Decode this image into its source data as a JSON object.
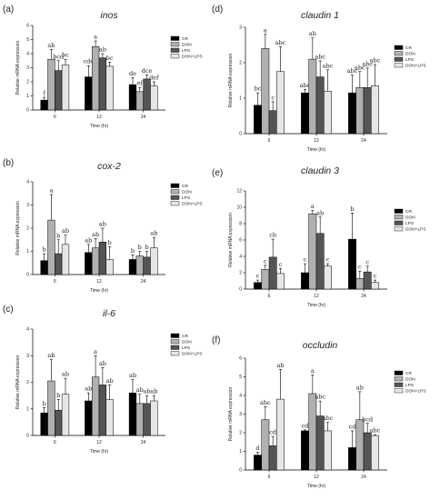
{
  "colors": {
    "CR": "#000000",
    "DON": "#b0b0b0",
    "LPS": "#555555",
    "DON+LPS": "#e6e6e6"
  },
  "chart_data": [
    {
      "type": "bar",
      "panel_label": "(a)",
      "title": "inos",
      "ylabel": "Relative mRNA expression",
      "xlabel": "Time (hr)",
      "categories": [
        "6",
        "12",
        "24"
      ],
      "ylim": [
        0,
        6
      ],
      "yticks": [
        0,
        1,
        2,
        3,
        4,
        5,
        6
      ],
      "legend": [
        "CR",
        "DON",
        "LPS",
        "DON+LPS"
      ],
      "series": [
        {
          "name": "CR",
          "values": [
            0.7,
            2.35,
            1.8
          ],
          "errors": [
            0.2,
            0.8,
            0.5
          ]
        },
        {
          "name": "DON",
          "values": [
            3.6,
            4.5,
            1.3
          ],
          "errors": [
            0.7,
            0.4,
            0.3
          ]
        },
        {
          "name": "LPS",
          "values": [
            2.8,
            3.7,
            2.2
          ],
          "errors": [
            0.7,
            0.3,
            0.3
          ]
        },
        {
          "name": "DON+LPS",
          "values": [
            3.2,
            3.1,
            1.7
          ],
          "errors": [
            0.4,
            0.3,
            0.3
          ]
        }
      ],
      "letters": [
        [
          "f",
          "ab",
          "bcd",
          "bc"
        ],
        [
          "cde",
          "a",
          "ab",
          "bc"
        ],
        [
          "de",
          "ef",
          "dce",
          "def"
        ]
      ]
    },
    {
      "type": "bar",
      "panel_label": "(b)",
      "title": "cox-2",
      "ylabel": "Relative mRNA expression",
      "xlabel": "Time (hr)",
      "categories": [
        "6",
        "12",
        "24"
      ],
      "ylim": [
        0,
        4
      ],
      "yticks": [
        0,
        1,
        2,
        3,
        4
      ],
      "legend": [
        "CR",
        "DON",
        "LPS",
        "DON+LPS"
      ],
      "series": [
        {
          "name": "CR",
          "values": [
            0.6,
            0.95,
            0.65
          ],
          "errors": [
            0.3,
            0.35,
            0.2
          ]
        },
        {
          "name": "DON",
          "values": [
            2.35,
            1.15,
            0.8
          ],
          "errors": [
            1.1,
            0.4,
            0.2
          ]
        },
        {
          "name": "LPS",
          "values": [
            0.9,
            1.4,
            0.75
          ],
          "errors": [
            0.6,
            0.6,
            0.25
          ]
        },
        {
          "name": "DON+LPS",
          "values": [
            1.3,
            0.65,
            1.15
          ],
          "errors": [
            0.4,
            0.55,
            0.45
          ]
        }
      ],
      "letters": [
        [
          "b",
          "a",
          "b",
          "ab"
        ],
        [
          "ab",
          "ab",
          "ab",
          "b"
        ],
        [
          "b",
          "b",
          "b",
          "ab"
        ]
      ]
    },
    {
      "type": "bar",
      "panel_label": "(c)",
      "title": "il-6",
      "ylabel": "Relative mRNA expression",
      "xlabel": "Time (hr)",
      "categories": [
        "6",
        "12",
        "24"
      ],
      "ylim": [
        0,
        4
      ],
      "yticks": [
        0,
        1,
        2,
        3,
        4
      ],
      "legend": [
        "CR",
        "DON",
        "LPS",
        "DON+LPS"
      ],
      "series": [
        {
          "name": "CR",
          "values": [
            0.85,
            1.3,
            1.6
          ],
          "errors": [
            0.2,
            0.3,
            0.5
          ]
        },
        {
          "name": "DON",
          "values": [
            2.05,
            2.2,
            1.2
          ],
          "errors": [
            0.8,
            0.8,
            0.35
          ]
        },
        {
          "name": "LPS",
          "values": [
            0.95,
            1.9,
            1.2
          ],
          "errors": [
            0.4,
            0.65,
            0.3
          ]
        },
        {
          "name": "DON+LPS",
          "values": [
            1.55,
            1.35,
            1.3
          ],
          "errors": [
            0.6,
            0.55,
            0.2
          ]
        }
      ],
      "letters": [
        [
          "b",
          "ab",
          "b",
          "ab"
        ],
        [
          "ab",
          "a",
          "ab",
          "ab"
        ],
        [
          "ab",
          "ab",
          "ab",
          "ab"
        ]
      ]
    },
    {
      "type": "bar",
      "panel_label": "(d)",
      "title": "claudin 1",
      "ylabel": "Relative mRNA expression",
      "xlabel": "Time (hr)",
      "categories": [
        "6",
        "12",
        "24"
      ],
      "ylim": [
        0,
        3
      ],
      "yticks": [
        0,
        1,
        2,
        3
      ],
      "legend": [
        "CR",
        "DON",
        "LPS",
        "DON+LPS"
      ],
      "series": [
        {
          "name": "CR",
          "values": [
            0.8,
            1.15,
            1.15
          ],
          "errors": [
            0.35,
            0.1,
            0.5
          ]
        },
        {
          "name": "DON",
          "values": [
            2.4,
            2.1,
            1.3
          ],
          "errors": [
            0.4,
            0.6,
            0.45
          ]
        },
        {
          "name": "LPS",
          "values": [
            0.65,
            1.6,
            1.3
          ],
          "errors": [
            0.25,
            0.45,
            0.55
          ]
        },
        {
          "name": "DON+LPS",
          "values": [
            1.75,
            1.2,
            1.35
          ],
          "errors": [
            0.7,
            0.6,
            0.6
          ]
        }
      ],
      "letters": [
        [
          "bc",
          "a",
          "c",
          "abc"
        ],
        [
          "abc",
          "ab",
          "abc",
          "abc"
        ],
        [
          "abc",
          "abc",
          "abc",
          "abc"
        ]
      ]
    },
    {
      "type": "bar",
      "panel_label": "(e)",
      "title": "claudin 3",
      "ylabel": "Relative mRNA expression",
      "xlabel": "Time (hr)",
      "categories": [
        "6",
        "12",
        "24"
      ],
      "ylim": [
        0,
        12
      ],
      "yticks": [
        0,
        2,
        4,
        6,
        8,
        10,
        12
      ],
      "legend": [
        "CR",
        "DON",
        "LPS",
        "DON+LPS"
      ],
      "series": [
        {
          "name": "CR",
          "values": [
            0.8,
            2.0,
            6.1
          ],
          "errors": [
            0.3,
            1.1,
            3.2
          ]
        },
        {
          "name": "DON",
          "values": [
            2.4,
            9.2,
            1.3
          ],
          "errors": [
            0.5,
            0.4,
            0.9
          ]
        },
        {
          "name": "LPS",
          "values": [
            3.9,
            6.8,
            2.1
          ],
          "errors": [
            2.2,
            2.0,
            0.7
          ]
        },
        {
          "name": "DON+LPS",
          "values": [
            1.9,
            2.8,
            0.8
          ],
          "errors": [
            0.6,
            0.3,
            0.3
          ]
        }
      ],
      "letters": [
        [
          "c",
          "c",
          "cb",
          "c"
        ],
        [
          "c",
          "a",
          "ab",
          "c"
        ],
        [
          "b",
          "c",
          "c",
          "c"
        ]
      ]
    },
    {
      "type": "bar",
      "panel_label": "(f)",
      "title": "occludin",
      "ylabel": "Relative mRNA expression",
      "xlabel": "Time (hr)",
      "categories": [
        "6",
        "12",
        "24"
      ],
      "ylim": [
        0,
        6
      ],
      "yticks": [
        0,
        1,
        2,
        3,
        4,
        5,
        6
      ],
      "legend": [
        "CR",
        "DON",
        "LPS",
        "DON+LPS"
      ],
      "series": [
        {
          "name": "CR",
          "values": [
            0.8,
            2.1,
            1.2
          ],
          "errors": [
            0.15,
            0.05,
            0.9
          ]
        },
        {
          "name": "DON",
          "values": [
            2.7,
            4.1,
            2.7
          ],
          "errors": [
            0.7,
            1.0,
            1.5
          ]
        },
        {
          "name": "LPS",
          "values": [
            1.3,
            2.9,
            2.0
          ],
          "errors": [
            0.5,
            0.8,
            0.5
          ]
        },
        {
          "name": "DON+LPS",
          "values": [
            3.8,
            2.1,
            1.85
          ],
          "errors": [
            1.6,
            0.45,
            0.05
          ]
        }
      ],
      "letters": [
        [
          "d",
          "abc",
          "cd",
          "ab"
        ],
        [
          "cd",
          "a",
          "abc",
          "abc"
        ],
        [
          "cd",
          "ab",
          "bcd",
          "abc"
        ]
      ]
    }
  ]
}
